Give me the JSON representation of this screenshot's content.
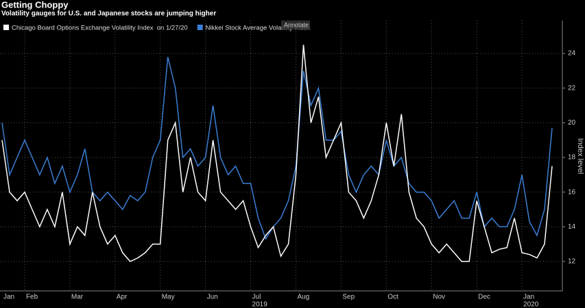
{
  "chart_data": {
    "type": "line",
    "title": "Getting Choppy",
    "subtitle": "Volatility gauges for U.S. and Japanese stocks are jumping higher",
    "tooltip": "Annotate",
    "y_axis_label": "Index level",
    "categories": [
      "Jan",
      null,
      null,
      "Feb",
      null,
      null,
      null,
      null,
      null,
      "Mar",
      null,
      null,
      null,
      null,
      null,
      "Apr",
      null,
      null,
      null,
      null,
      null,
      "May",
      null,
      null,
      null,
      null,
      null,
      "Jun",
      null,
      null,
      null,
      null,
      null,
      "Jul",
      null,
      null,
      null,
      null,
      null,
      "Aug",
      null,
      null,
      null,
      null,
      null,
      "Sep",
      null,
      null,
      null,
      null,
      null,
      "Oct",
      null,
      null,
      null,
      null,
      null,
      "Nov",
      null,
      null,
      null,
      null,
      null,
      "Dec",
      null,
      null,
      null,
      null,
      null,
      "Jan",
      null,
      null,
      null,
      null
    ],
    "year_labels": [
      {
        "label": "2019",
        "category_index": 33
      },
      {
        "label": "2020",
        "category_index": 69
      }
    ],
    "series": [
      {
        "name": "Chicago Board Options Exchange Volatility Index  on 1/27/20",
        "color": "#ffffff",
        "values": [
          19,
          16,
          15.5,
          16,
          15,
          14,
          15,
          14,
          16,
          13,
          14,
          13.5,
          16,
          14,
          13,
          13.5,
          12.5,
          12,
          12.2,
          12.5,
          13,
          13,
          19,
          20,
          16,
          18,
          16,
          15.5,
          19,
          16,
          15.5,
          15,
          15.5,
          14,
          12.8,
          13.5,
          14,
          12.3,
          13,
          17,
          24.5,
          20,
          21.5,
          18,
          19,
          20,
          16,
          15.5,
          14.5,
          15.5,
          17,
          20,
          17.5,
          20.5,
          16,
          14.5,
          14,
          13,
          12.5,
          13,
          12.5,
          12,
          12,
          15.5,
          14,
          12.5,
          12.7,
          12.8,
          14.5,
          12.5,
          12.4,
          12.2,
          13,
          17.5
        ]
      },
      {
        "name": "Nikkei Stock Average Volatility Index",
        "color": "#3a7fd5",
        "values": [
          20,
          17,
          18,
          19,
          18,
          17,
          18,
          16.5,
          17.5,
          16,
          17,
          18.5,
          16,
          15.5,
          16,
          15.5,
          15,
          15.8,
          15.5,
          16,
          18,
          19,
          23.8,
          22,
          18,
          18.5,
          17.5,
          18,
          21,
          18,
          17,
          17.5,
          16.5,
          16.5,
          14.5,
          13.3,
          14,
          14.5,
          15.5,
          17.5,
          23,
          21,
          22,
          19,
          19,
          19.5,
          17,
          16,
          17,
          17.5,
          17,
          19,
          17.5,
          18,
          16.5,
          16,
          16,
          15.5,
          14.5,
          15,
          15.5,
          14.5,
          14.5,
          16,
          14,
          14.5,
          14,
          14,
          15,
          17,
          14.3,
          13.5,
          15,
          19.7
        ]
      }
    ],
    "ylim": [
      10.3,
      25.9
    ],
    "yticks": [
      12,
      14,
      16,
      18,
      20,
      22,
      24
    ],
    "grid": true
  }
}
